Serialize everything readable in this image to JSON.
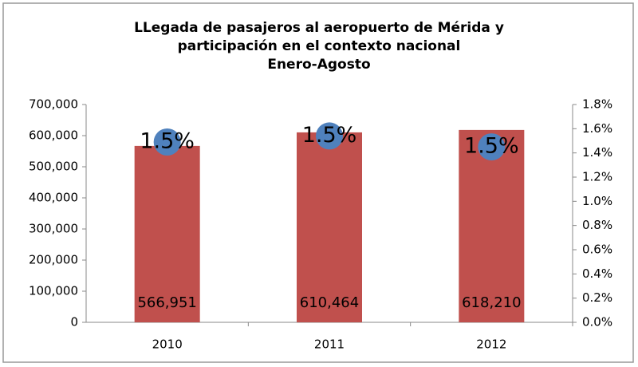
{
  "chart_data": {
    "type": "combo",
    "title": "LLegada de pasajeros al aeropuerto de Mérida y participación en el contexto nacional",
    "subtitle": "Enero-Agosto",
    "categories": [
      "2010",
      "2011",
      "2012"
    ],
    "series": [
      {
        "type": "bar",
        "color": "#c0504d",
        "values": [
          566951,
          610464,
          618210
        ],
        "value_labels": [
          "566,951",
          "610,464",
          "618,210"
        ]
      },
      {
        "type": "scatter",
        "axis": "y2",
        "color": "#4f81bd",
        "values": [
          1.49,
          1.54,
          1.45
        ],
        "value_labels": [
          "1.5%",
          "1.5%",
          "1.5%"
        ]
      }
    ],
    "ylim": [
      0,
      700000
    ],
    "yticks": [
      0,
      {
        "value": 100000,
        "label": "100,000"
      },
      {
        "value": 200000,
        "label": "200,000"
      },
      {
        "value": 300000,
        "label": "300,000"
      },
      {
        "value": 400000,
        "label": "400,000"
      },
      {
        "value": 500000,
        "label": "500,000"
      },
      {
        "value": 600000,
        "label": "600,000"
      },
      {
        "value": 700000,
        "label": "700,000"
      }
    ],
    "y2lim": [
      0,
      1.8
    ],
    "y2ticks": [
      {
        "value": 0,
        "label": "0.0%"
      },
      {
        "value": 0.2,
        "label": "0.2%"
      },
      {
        "value": 0.4,
        "label": "0.4%"
      },
      {
        "value": 0.6,
        "label": "0.6%"
      },
      {
        "value": 0.8,
        "label": "0.8%"
      },
      {
        "value": 1.0,
        "label": "1.0%"
      },
      {
        "value": 1.2,
        "label": "1.2%"
      },
      {
        "value": 1.4,
        "label": "1.4%"
      },
      {
        "value": 1.6,
        "label": "1.6%"
      },
      {
        "value": 1.8,
        "label": "1.8%"
      }
    ],
    "grid": false
  }
}
